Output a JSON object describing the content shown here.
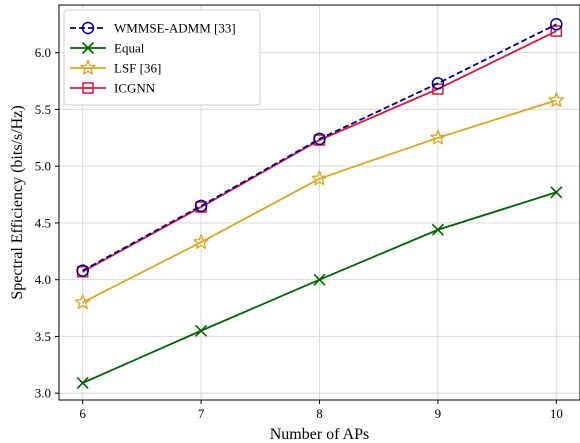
{
  "chart_data": {
    "type": "line",
    "xlabel": "Number of APs",
    "ylabel": "Spectral Efficiency (bits/s/Hz)",
    "x": [
      6,
      7,
      8,
      9,
      10
    ],
    "xlim": [
      5.8,
      10.2
    ],
    "ylim": [
      2.94,
      6.42
    ],
    "xticks": [
      "6",
      "7",
      "8",
      "9",
      "10"
    ],
    "yticks": [
      "3.0",
      "3.5",
      "4.0",
      "4.5",
      "5.0",
      "5.5",
      "6.0"
    ],
    "grid": true,
    "legend_position": "top-left",
    "series": [
      {
        "name": "WMMSE-ADMM [33]",
        "color": "#00008b",
        "marker": "circle",
        "dashed": true,
        "values": [
          4.08,
          4.65,
          5.24,
          5.73,
          6.25
        ]
      },
      {
        "name": "Equal",
        "color": "#006400",
        "marker": "x",
        "dashed": false,
        "values": [
          3.09,
          3.55,
          4.0,
          4.44,
          4.77
        ]
      },
      {
        "name": "LSF [36]",
        "color": "#daa520",
        "marker": "star",
        "dashed": false,
        "values": [
          3.8,
          4.33,
          4.89,
          5.25,
          5.58
        ]
      },
      {
        "name": "ICGNN",
        "color": "#dc143c",
        "marker": "square",
        "dashed": false,
        "values": [
          4.07,
          4.64,
          5.23,
          5.68,
          6.19
        ]
      }
    ]
  }
}
